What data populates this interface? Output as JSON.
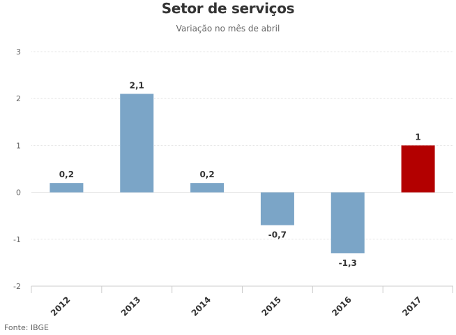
{
  "chart_data": {
    "type": "bar",
    "title": "Setor de serviços",
    "subtitle": "Variação no mês de abril",
    "categories": [
      "2012",
      "2013",
      "2014",
      "2015",
      "2016",
      "2017"
    ],
    "values": [
      0.2,
      2.1,
      0.2,
      -0.7,
      -1.3,
      1
    ],
    "data_labels": [
      "0,2",
      "2,1",
      "0,2",
      "-0,7",
      "-1,3",
      "1"
    ],
    "bar_colors": [
      "#7ba5c7",
      "#7ba5c7",
      "#7ba5c7",
      "#7ba5c7",
      "#7ba5c7",
      "#b30000"
    ],
    "y_ticks": [
      3,
      2,
      1,
      0,
      -1,
      -2
    ],
    "y_tick_labels": [
      "3",
      "2",
      "1",
      "0",
      "-1",
      "-2"
    ],
    "ylim": [
      -2,
      3
    ],
    "grid": true,
    "legend": false
  },
  "source": "Fonte: IBGE"
}
